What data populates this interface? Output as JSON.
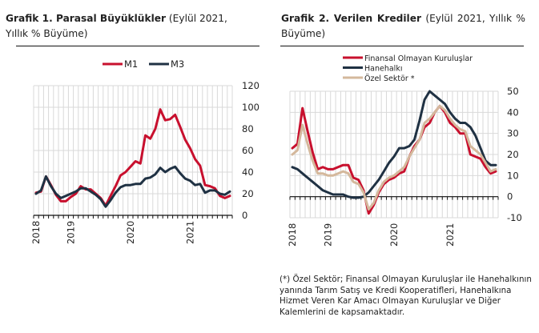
{
  "charts": [
    {
      "title_bold": "Grafik 1. Parasal Büyüklükler",
      "title_rest": " (Eylül 2021, Yıllık % Büyüme)"
    },
    {
      "title_bold": "Grafik 2. Verilen Krediler",
      "title_rest": " (Eylül 2021, Yıllık % Büyüme)"
    }
  ],
  "footnote": "(*) Özel Sektör; Finansal Olmayan Kuruluşlar ile Hanehalkının yanında Tarım Satış ve Kredi Kooperatifleri, Hanehalkına Hizmet Veren Kar Amacı Olmayan Kuruluşlar ve Diğer Kalemlerini de kapsamaktadır.",
  "chart_data": [
    {
      "type": "line",
      "title": "Grafik 1. Parasal Büyüklükler (Eylül 2021, Yıllık % Büyüme)",
      "xlabel": "",
      "ylabel": "",
      "x_tick_labels": [
        "2018",
        "2019",
        "2020",
        "2021"
      ],
      "x_tick_label_index": [
        0,
        7,
        19,
        31
      ],
      "ylim": [
        0,
        120
      ],
      "yticks": [
        0,
        20,
        40,
        60,
        80,
        100,
        120
      ],
      "y_axis_side": "right",
      "grid": true,
      "legend_position": "top-center",
      "series": [
        {
          "name": "M1",
          "color": "#c8102e",
          "values": [
            21,
            22,
            36,
            28,
            19,
            13,
            13,
            17,
            20,
            27,
            24,
            24,
            20,
            16,
            9,
            18,
            27,
            37,
            40,
            45,
            50,
            48,
            74,
            71,
            80,
            98,
            88,
            89,
            93,
            82,
            70,
            62,
            52,
            46,
            28,
            27,
            25,
            18,
            16,
            18
          ]
        },
        {
          "name": "M3",
          "color": "#1f3143",
          "values": [
            20,
            23,
            36,
            27,
            20,
            16,
            18,
            20,
            22,
            25,
            25,
            22,
            19,
            15,
            8,
            14,
            21,
            26,
            28,
            28,
            29,
            29,
            34,
            35,
            38,
            44,
            40,
            43,
            45,
            39,
            34,
            32,
            28,
            29,
            21,
            23,
            23,
            20,
            19,
            22
          ]
        }
      ]
    },
    {
      "type": "line",
      "title": "Grafik 2. Verilen Krediler (Eylül 2021, Yıllık % Büyüme)",
      "xlabel": "",
      "ylabel": "",
      "x_tick_labels": [
        "2018",
        "2019",
        "2020",
        "2021"
      ],
      "x_tick_label_index": [
        0,
        7,
        20,
        31
      ],
      "ylim": [
        -10,
        50
      ],
      "yticks": [
        -10,
        0,
        10,
        20,
        30,
        40,
        50
      ],
      "y_axis_side": "right",
      "grid": true,
      "legend_position": "top-left",
      "series": [
        {
          "name": "Finansal Olmayan Kuruluşlar",
          "color": "#c8102e",
          "values": [
            23,
            25,
            42,
            31,
            21,
            13,
            14,
            13,
            13,
            14,
            15,
            15,
            9,
            8,
            3,
            -8,
            -4,
            2,
            6,
            8,
            9,
            11,
            12,
            19,
            24,
            27,
            33,
            35,
            40,
            43,
            40,
            35,
            33,
            30,
            30,
            20,
            19,
            18,
            14,
            11,
            12
          ]
        },
        {
          "name": "Hanehalkı",
          "color": "#1f3143",
          "values": [
            14,
            13,
            11,
            9,
            7,
            5,
            3,
            2,
            1,
            1,
            1,
            0,
            -0.5,
            -0.5,
            0,
            2,
            5,
            8,
            12,
            16,
            19,
            23,
            23,
            24,
            27,
            36,
            46,
            50,
            48,
            46,
            44,
            40,
            37,
            35,
            35,
            33,
            29,
            23,
            17,
            15,
            15
          ]
        },
        {
          "name": "Özel Sektör *",
          "color": "#d4b89c",
          "values": [
            20,
            22,
            34,
            25,
            17,
            11,
            11,
            10,
            10,
            11,
            12,
            11,
            7,
            6,
            2,
            -6,
            -3,
            3,
            7,
            9,
            10,
            12,
            14,
            19,
            23,
            27,
            35,
            37,
            40,
            43,
            41,
            37,
            34,
            32,
            31,
            24,
            22,
            20,
            16,
            12,
            13
          ]
        }
      ]
    }
  ]
}
